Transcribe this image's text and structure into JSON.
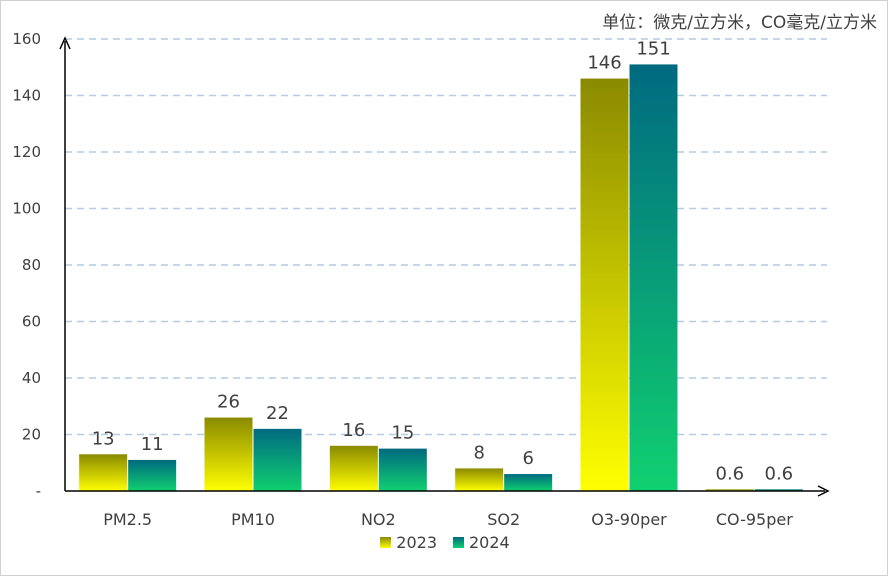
{
  "chart_data": {
    "type": "bar",
    "unit_note": "单位：微克/立方米，CO毫克/立方米",
    "categories": [
      "PM2.5",
      "PM10",
      "NO2",
      "SO2",
      "O3-90per",
      "CO-95per"
    ],
    "series": [
      {
        "name": "2023",
        "values": [
          13,
          26,
          16,
          8,
          146,
          0.6
        ],
        "labels": [
          "13",
          "26",
          "16",
          "8",
          "146",
          "0.6"
        ],
        "gradient": [
          "#8a8a00",
          "#ffff00"
        ]
      },
      {
        "name": "2024",
        "values": [
          11,
          22,
          15,
          6,
          151,
          0.6
        ],
        "labels": [
          "11",
          "22",
          "15",
          "6",
          "151",
          "0.6"
        ],
        "gradient": [
          "#006a80",
          "#10d070"
        ]
      }
    ],
    "ylim": [
      0,
      160
    ],
    "yticks": [
      0,
      20,
      40,
      60,
      80,
      100,
      120,
      140,
      160
    ],
    "ytick_labels": [
      "-",
      "20",
      "40",
      "60",
      "80",
      "100",
      "120",
      "140",
      "160"
    ],
    "grid": true,
    "gridline_color": "#b4cce4",
    "legend_position": "bottom"
  }
}
